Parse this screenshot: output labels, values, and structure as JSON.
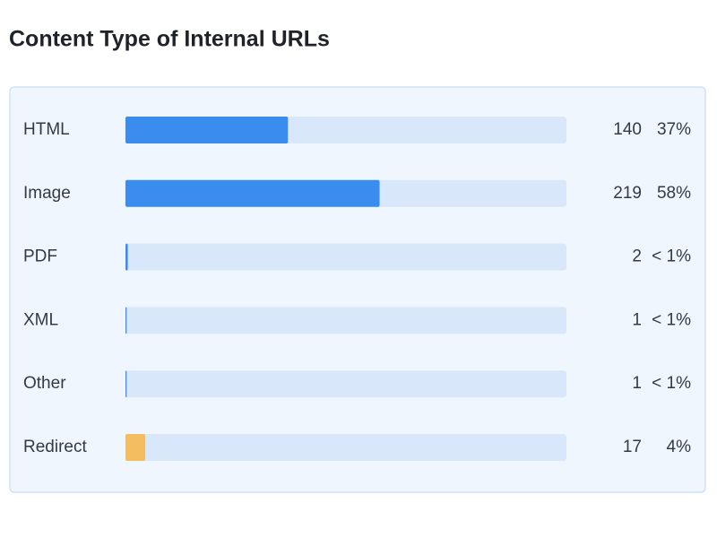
{
  "chart_data": {
    "type": "bar",
    "orientation": "horizontal",
    "title": "Content Type of Internal URLs",
    "categories": [
      "HTML",
      "Image",
      "PDF",
      "XML",
      "Other",
      "Redirect"
    ],
    "values": [
      140,
      219,
      2,
      1,
      1,
      17
    ],
    "percent_labels": [
      "37%",
      "58%",
      "< 1%",
      "< 1%",
      "< 1%",
      "4%"
    ],
    "colors": [
      "#3a8dee",
      "#3a8dee",
      "#3a8dee",
      "#3a8dee",
      "#3a8dee",
      "#f4bd5f"
    ]
  }
}
